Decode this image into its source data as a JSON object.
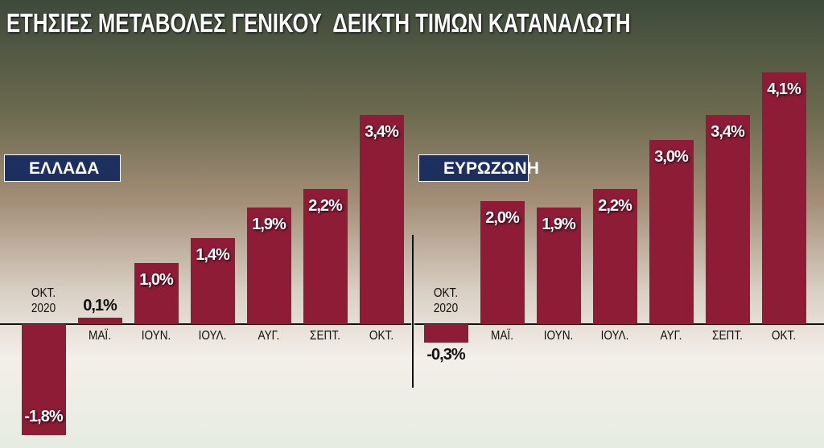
{
  "title": "ΕΤΗΣΙΕΣ ΜΕΤΑΒΟΛΕΣ ΓΕΝΙΚΟΥ  ΔΕΙΚΤΗ ΤΙΜΩΝ ΚΑΤΑΝΑΛΩΤΗ",
  "chart_data": [
    {
      "type": "bar",
      "title": "ΕΛΛΑΔΑ",
      "categories": [
        "ΟΚΤ. 2020",
        "ΜΑΪ.",
        "ΙΟΥΝ.",
        "ΙΟΥΛ.",
        "ΑΥΓ.",
        "ΣΕΠΤ.",
        "ΟΚΤ."
      ],
      "values": [
        -1.8,
        0.1,
        1.0,
        1.4,
        1.9,
        2.2,
        3.4
      ],
      "value_labels": [
        "-1,8%",
        "0,1%",
        "1,0%",
        "1,4%",
        "1,9%",
        "2,2%",
        "3,4%"
      ],
      "color": "#8e1c37",
      "ylim": [
        -2,
        4.5
      ]
    },
    {
      "type": "bar",
      "title": "ΕΥΡΩΖΩΝΗ",
      "categories": [
        "ΟΚΤ. 2020",
        "ΜΑΪ.",
        "ΙΟΥΝ.",
        "ΙΟΥΛ.",
        "ΑΥΓ.",
        "ΣΕΠΤ.",
        "ΟΚΤ."
      ],
      "values": [
        -0.3,
        2.0,
        1.9,
        2.2,
        3.0,
        3.4,
        4.1
      ],
      "value_labels": [
        "-0,3%",
        "2,0%",
        "1,9%",
        "2,2%",
        "3,0%",
        "3,4%",
        "4,1%"
      ],
      "color": "#8e1c37",
      "ylim": [
        -2,
        4.5
      ]
    }
  ]
}
